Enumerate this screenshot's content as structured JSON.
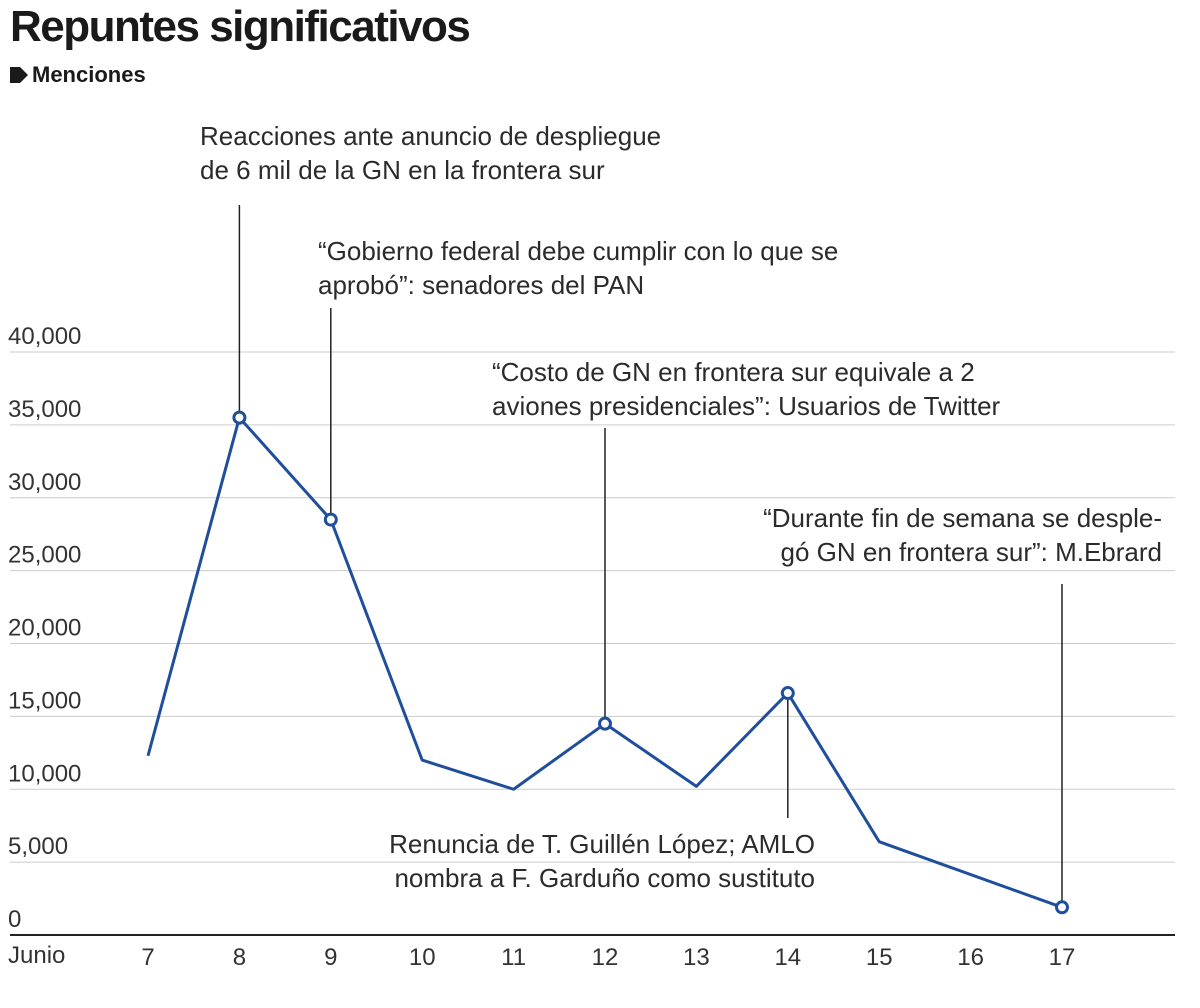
{
  "title": "Repuntes significativos",
  "subtitle": "Menciones",
  "colors": {
    "line": "#1f4e9c",
    "grid": "#cccccc",
    "axis": "#222222",
    "marker_fill": "#ffffff"
  },
  "chart_data": {
    "type": "line",
    "title": "Repuntes significativos",
    "ylabel": "Menciones",
    "x_axis_prefix": "Junio",
    "categories": [
      "7",
      "8",
      "9",
      "10",
      "11",
      "12",
      "13",
      "14",
      "15",
      "16",
      "17"
    ],
    "series": [
      {
        "values": [
          12300,
          35500,
          28500,
          12000,
          10000,
          14500,
          10200,
          16600,
          6400,
          null,
          1900
        ]
      }
    ],
    "y_ticks": [
      "0",
      "5,000",
      "10,000",
      "15,000",
      "20,000",
      "25,000",
      "30,000",
      "35,000",
      "40,000"
    ],
    "ylim": [
      0,
      40000
    ],
    "grid": true,
    "legend": "none",
    "highlighted_points": [
      "8",
      "9",
      "12",
      "14",
      "17"
    ],
    "annotations": [
      {
        "x": "8",
        "lines": [
          "Reacciones ante anuncio de despliegue",
          "de 6 mil de la GN en la frontera sur"
        ]
      },
      {
        "x": "9",
        "lines": [
          "“Gobierno federal debe cumplir con lo que se",
          "aprobó”: senadores del PAN"
        ]
      },
      {
        "x": "12",
        "lines": [
          "“Costo de GN en frontera sur equivale a 2",
          "aviones presidenciales”: Usuarios de Twitter"
        ]
      },
      {
        "x": "14",
        "lines": [
          "Renuncia de T. Guillén López; AMLO",
          "nombra a F. Garduño como sustituto"
        ]
      },
      {
        "x": "17",
        "lines": [
          "“Durante fin de semana se desple-",
          "gó GN en frontera sur”: M.Ebrard"
        ]
      }
    ]
  }
}
